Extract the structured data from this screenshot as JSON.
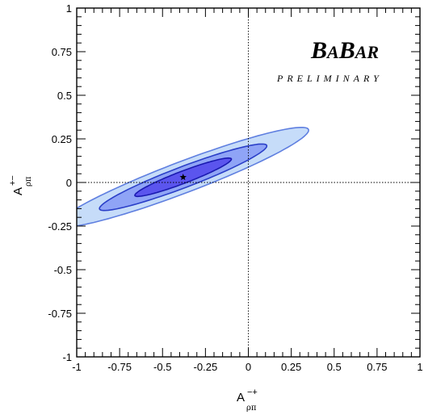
{
  "chart_data": {
    "type": "contour",
    "title": "",
    "xlabel": {
      "base": "A",
      "sup": "−+",
      "sub": "ρπ"
    },
    "ylabel": {
      "base": "A",
      "sup": "+−",
      "sub": "ρπ"
    },
    "xlim": [
      -1,
      1
    ],
    "ylim": [
      -1,
      1
    ],
    "x_ticks": [
      "-1",
      "-0.75",
      "-0.5",
      "-0.25",
      "0",
      "0.25",
      "0.5",
      "0.75",
      "1"
    ],
    "y_ticks": [
      "-1",
      "-0.75",
      "-0.5",
      "-0.25",
      "0",
      "0.25",
      "0.5",
      "0.75",
      "1"
    ],
    "x_tick_values": [
      -1,
      -0.75,
      -0.5,
      -0.25,
      0,
      0.25,
      0.5,
      0.75,
      1
    ],
    "y_tick_values": [
      -1,
      -0.75,
      -0.5,
      -0.25,
      0,
      0.25,
      0.5,
      0.75,
      1
    ],
    "reference_lines": {
      "x": 0,
      "y": 0,
      "style": "dotted"
    },
    "central_value": {
      "x": -0.38,
      "y": 0.03,
      "marker": "star"
    },
    "contours": [
      {
        "level": "outer",
        "center": [
          -0.38,
          0.03
        ],
        "semi_axes": [
          0.78,
          0.09
        ],
        "angle_deg": 20.5,
        "fill": "#c6dcf9",
        "stroke": "#5f7fe0"
      },
      {
        "level": "middle",
        "center": [
          -0.38,
          0.03
        ],
        "semi_axes": [
          0.52,
          0.06
        ],
        "angle_deg": 20.5,
        "fill": "#8fa4f6",
        "stroke": "#2a3fc8"
      },
      {
        "level": "inner",
        "center": [
          -0.38,
          0.03
        ],
        "semi_axes": [
          0.3,
          0.035
        ],
        "angle_deg": 20.5,
        "fill": "#5b55ee",
        "stroke": "#1a1ab0"
      }
    ]
  },
  "logo": {
    "B1": "B",
    "A1": "A",
    "B2": "B",
    "A2": "AR",
    "subtitle": "PRELIMINARY"
  }
}
